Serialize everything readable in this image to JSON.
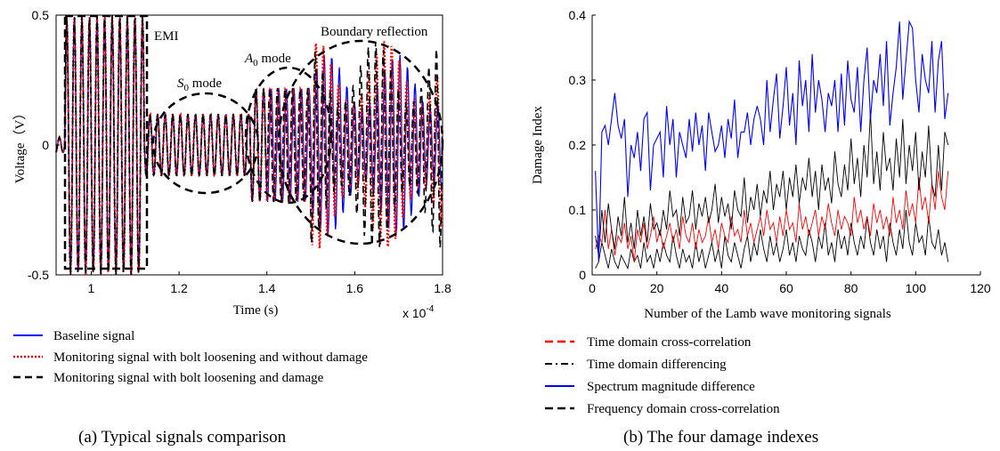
{
  "chart_data": [
    {
      "type": "line",
      "caption": "(a) Typical signals comparison",
      "xlabel": "Time (s)",
      "ylabel": "Voltage（V）",
      "x_exponent_label": "x 10",
      "x_exponent_power": "-4",
      "xlim": [
        0.92,
        1.8
      ],
      "ylim": [
        -0.5,
        0.5
      ],
      "xticks": [
        "1",
        "1.2",
        "1.4",
        "1.6",
        "1.8"
      ],
      "xtick_values": [
        1.0,
        1.2,
        1.4,
        1.6,
        1.8
      ],
      "yticks": [
        "-0.5",
        "0",
        "0.5"
      ],
      "ytick_values": [
        -0.5,
        0,
        0.5
      ],
      "grid": false,
      "annotations": {
        "emi": "EMI",
        "s0": "S",
        "s0_sub": "0",
        "s0_rest": " mode",
        "a0": "A",
        "a0_sub": "0",
        "a0_rest": " mode",
        "boundary": "Boundary reflection"
      },
      "series": [
        {
          "name": "Baseline signal",
          "color": "#0000ff",
          "style": "solid"
        },
        {
          "name": "Monitoring signal with bolt loosening and without damage",
          "color": "#ff0000",
          "style": "dotted"
        },
        {
          "name": "Monitoring signal with bolt loosening and damage",
          "color": "#000000",
          "style": "dashed"
        }
      ],
      "signal_segments": [
        {
          "x_start": 0.92,
          "x_end": 0.94,
          "freq": 60,
          "amp": 0.03
        },
        {
          "x_start": 0.94,
          "x_end": 1.12,
          "freq": 58,
          "amp": 0.5
        },
        {
          "x_start": 1.12,
          "x_end": 1.36,
          "freq": 58,
          "amp": 0.12
        },
        {
          "x_start": 1.36,
          "x_end": 1.5,
          "freq": 58,
          "amp": 0.22
        },
        {
          "x_start": 1.5,
          "x_end": 1.8,
          "freq": 58,
          "amp": 0.35
        }
      ]
    },
    {
      "type": "line",
      "caption": "(b) The four damage indexes",
      "xlabel": "Number of the Lamb wave monitoring signals",
      "ylabel": "Damage Index",
      "xlim": [
        0,
        120
      ],
      "ylim": [
        0,
        0.4
      ],
      "xticks": [
        "0",
        "20",
        "40",
        "60",
        "80",
        "100",
        "120"
      ],
      "xtick_values": [
        0,
        20,
        40,
        60,
        80,
        100,
        120
      ],
      "yticks": [
        "0",
        "0.1",
        "0.2",
        "0.3",
        "0.4"
      ],
      "ytick_values": [
        0,
        0.1,
        0.2,
        0.3,
        0.4
      ],
      "grid": false,
      "series": [
        {
          "name": "Time domain cross-correlation",
          "color": "#ff0000",
          "style": "dashed",
          "values": [
            0.04,
            0.06,
            0.05,
            0.1,
            0.04,
            0.07,
            0.03,
            0.06,
            0.05,
            0.08,
            0.04,
            0.06,
            0.02,
            0.07,
            0.05,
            0.08,
            0.04,
            0.06,
            0.09,
            0.05,
            0.07,
            0.04,
            0.06,
            0.08,
            0.05,
            0.07,
            0.04,
            0.09,
            0.06,
            0.05,
            0.08,
            0.04,
            0.07,
            0.05,
            0.06,
            0.09,
            0.05,
            0.07,
            0.04,
            0.08,
            0.06,
            0.05,
            0.09,
            0.06,
            0.07,
            0.05,
            0.1,
            0.06,
            0.08,
            0.05,
            0.07,
            0.09,
            0.06,
            0.1,
            0.07,
            0.08,
            0.05,
            0.09,
            0.06,
            0.1,
            0.07,
            0.08,
            0.05,
            0.11,
            0.07,
            0.09,
            0.06,
            0.08,
            0.1,
            0.06,
            0.09,
            0.07,
            0.11,
            0.08,
            0.06,
            0.1,
            0.07,
            0.09,
            0.08,
            0.06,
            0.12,
            0.08,
            0.1,
            0.07,
            0.09,
            0.06,
            0.11,
            0.08,
            0.1,
            0.07,
            0.09,
            0.06,
            0.12,
            0.08,
            0.1,
            0.07,
            0.13,
            0.09,
            0.11,
            0.08,
            0.15,
            0.1,
            0.12,
            0.08,
            0.14,
            0.1,
            0.16,
            0.12,
            0.1,
            0.16
          ]
        },
        {
          "name": "Time domain differencing",
          "color": "#000000",
          "style": "dashdot",
          "values": [
            0.01,
            0.02,
            0.05,
            0.03,
            0.01,
            0.04,
            0.02,
            0.01,
            0.03,
            0.02,
            0.01,
            0.04,
            0.02,
            0.03,
            0.01,
            0.05,
            0.02,
            0.03,
            0.01,
            0.04,
            0.02,
            0.05,
            0.03,
            0.02,
            0.06,
            0.03,
            0.01,
            0.04,
            0.02,
            0.03,
            0.01,
            0.05,
            0.02,
            0.04,
            0.01,
            0.03,
            0.05,
            0.02,
            0.04,
            0.01,
            0.06,
            0.03,
            0.02,
            0.05,
            0.03,
            0.01,
            0.04,
            0.06,
            0.02,
            0.05,
            0.03,
            0.07,
            0.04,
            0.02,
            0.06,
            0.03,
            0.05,
            0.02,
            0.04,
            0.07,
            0.03,
            0.05,
            0.02,
            0.06,
            0.04,
            0.03,
            0.07,
            0.05,
            0.02,
            0.06,
            0.04,
            0.08,
            0.03,
            0.05,
            0.02,
            0.07,
            0.04,
            0.06,
            0.03,
            0.08,
            0.05,
            0.03,
            0.06,
            0.04,
            0.09,
            0.05,
            0.03,
            0.07,
            0.04,
            0.06,
            0.02,
            0.08,
            0.05,
            0.03,
            0.07,
            0.04,
            0.1,
            0.05,
            0.03,
            0.08,
            0.05,
            0.06,
            0.03,
            0.09,
            0.05,
            0.04,
            0.07,
            0.03,
            0.05,
            0.02
          ]
        },
        {
          "name": "Spectrum magnitude difference",
          "color": "#0000ff",
          "style": "solid",
          "values": [
            0.16,
            0.02,
            0.22,
            0.23,
            0.2,
            0.24,
            0.28,
            0.23,
            0.21,
            0.24,
            0.12,
            0.2,
            0.18,
            0.22,
            0.16,
            0.24,
            0.25,
            0.13,
            0.2,
            0.21,
            0.22,
            0.15,
            0.26,
            0.2,
            0.24,
            0.15,
            0.22,
            0.2,
            0.18,
            0.24,
            0.19,
            0.25,
            0.2,
            0.23,
            0.16,
            0.25,
            0.22,
            0.19,
            0.2,
            0.23,
            0.18,
            0.24,
            0.21,
            0.27,
            0.18,
            0.22,
            0.22,
            0.25,
            0.2,
            0.24,
            0.26,
            0.24,
            0.2,
            0.3,
            0.22,
            0.27,
            0.31,
            0.21,
            0.26,
            0.32,
            0.23,
            0.28,
            0.2,
            0.33,
            0.26,
            0.3,
            0.22,
            0.34,
            0.25,
            0.3,
            0.27,
            0.22,
            0.28,
            0.26,
            0.3,
            0.22,
            0.31,
            0.23,
            0.33,
            0.27,
            0.25,
            0.32,
            0.22,
            0.3,
            0.35,
            0.24,
            0.3,
            0.28,
            0.34,
            0.26,
            0.36,
            0.23,
            0.28,
            0.32,
            0.39,
            0.27,
            0.33,
            0.39,
            0.38,
            0.3,
            0.25,
            0.34,
            0.3,
            0.28,
            0.36,
            0.25,
            0.33,
            0.36,
            0.24,
            0.28
          ]
        },
        {
          "name": "Frequency domain cross-correlation",
          "color": "#000000",
          "style": "dashed",
          "values": [
            0.06,
            0.03,
            0.1,
            0.05,
            0.11,
            0.07,
            0.04,
            0.09,
            0.06,
            0.12,
            0.05,
            0.08,
            0.04,
            0.1,
            0.06,
            0.09,
            0.05,
            0.11,
            0.07,
            0.08,
            0.06,
            0.1,
            0.07,
            0.13,
            0.09,
            0.1,
            0.06,
            0.12,
            0.08,
            0.09,
            0.13,
            0.07,
            0.11,
            0.09,
            0.12,
            0.08,
            0.1,
            0.14,
            0.08,
            0.12,
            0.09,
            0.11,
            0.07,
            0.13,
            0.1,
            0.09,
            0.15,
            0.08,
            0.12,
            0.1,
            0.14,
            0.09,
            0.13,
            0.11,
            0.16,
            0.1,
            0.14,
            0.12,
            0.16,
            0.1,
            0.15,
            0.12,
            0.17,
            0.11,
            0.15,
            0.13,
            0.18,
            0.12,
            0.16,
            0.1,
            0.17,
            0.13,
            0.15,
            0.11,
            0.19,
            0.14,
            0.12,
            0.17,
            0.13,
            0.21,
            0.14,
            0.18,
            0.12,
            0.2,
            0.15,
            0.25,
            0.14,
            0.19,
            0.13,
            0.22,
            0.16,
            0.18,
            0.13,
            0.21,
            0.15,
            0.24,
            0.14,
            0.2,
            0.16,
            0.22,
            0.13,
            0.19,
            0.15,
            0.23,
            0.14,
            0.12,
            0.2,
            0.13,
            0.22,
            0.2
          ]
        }
      ]
    }
  ]
}
